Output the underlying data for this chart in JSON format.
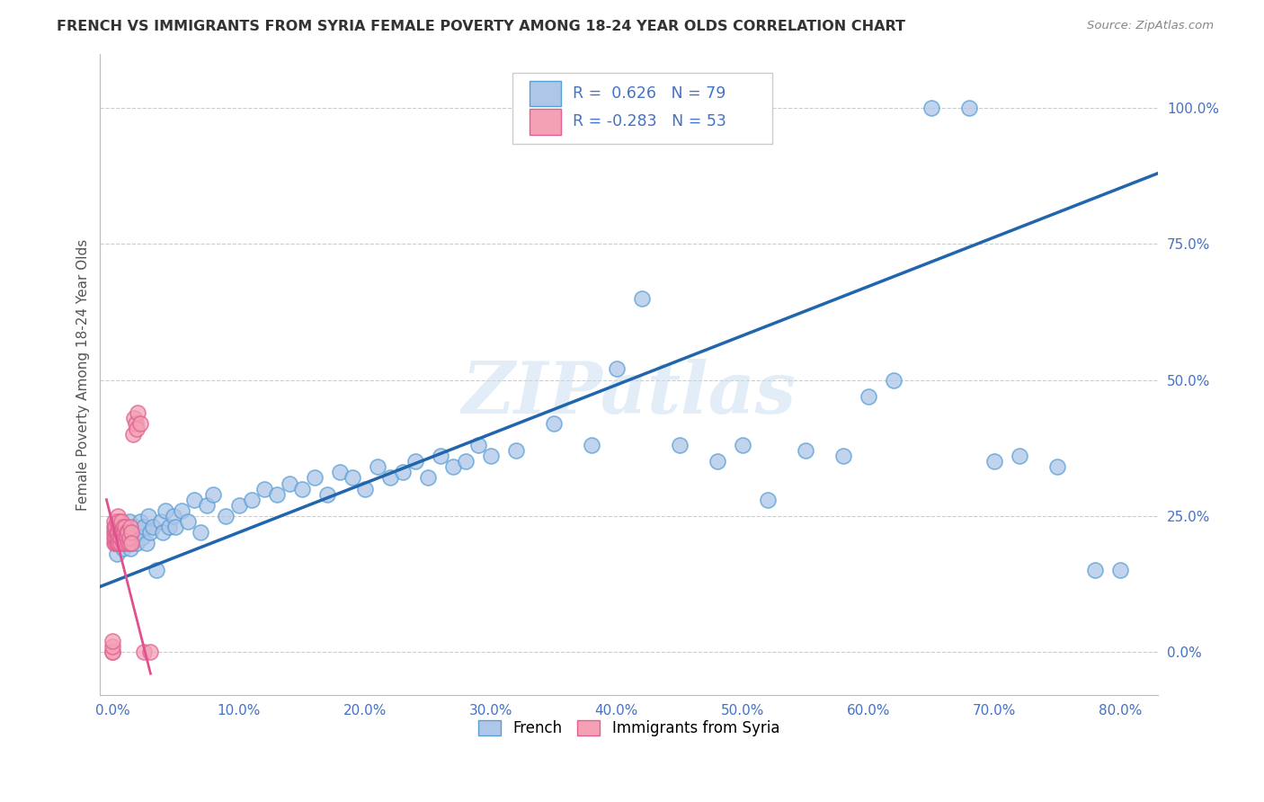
{
  "title": "FRENCH VS IMMIGRANTS FROM SYRIA FEMALE POVERTY AMONG 18-24 YEAR OLDS CORRELATION CHART",
  "source": "Source: ZipAtlas.com",
  "ylabel": "Female Poverty Among 18-24 Year Olds",
  "xlabel_ticks": [
    "0.0%",
    "10.0%",
    "20.0%",
    "30.0%",
    "40.0%",
    "50.0%",
    "60.0%",
    "70.0%",
    "80.0%"
  ],
  "xlabel_vals": [
    0,
    0.1,
    0.2,
    0.3,
    0.4,
    0.5,
    0.6,
    0.7,
    0.8
  ],
  "ylabel_ticks": [
    "0.0%",
    "25.0%",
    "50.0%",
    "75.0%",
    "100.0%"
  ],
  "ylabel_vals": [
    0,
    0.25,
    0.5,
    0.75,
    1.0
  ],
  "xlim": [
    -0.01,
    0.83
  ],
  "ylim": [
    -0.08,
    1.1
  ],
  "french_R": 0.626,
  "french_N": 79,
  "syria_R": -0.283,
  "syria_N": 53,
  "french_color": "#aec6e8",
  "syria_color": "#f4a0b5",
  "french_edge_color": "#5a9fd4",
  "syria_edge_color": "#e06090",
  "french_line_color": "#2166ac",
  "syria_line_color": "#e05090",
  "legend_french": "French",
  "legend_syria": "Immigrants from Syria",
  "watermark": "ZIPatlas",
  "background_color": "#ffffff",
  "grid_color": "#cccccc",
  "title_color": "#333333",
  "axis_label_color": "#555555",
  "tick_color": "#4472c4",
  "legend_r_color": "#4472c4",
  "french_x": [
    0.003,
    0.005,
    0.006,
    0.007,
    0.008,
    0.009,
    0.01,
    0.011,
    0.012,
    0.013,
    0.014,
    0.015,
    0.016,
    0.017,
    0.018,
    0.019,
    0.02,
    0.022,
    0.023,
    0.025,
    0.027,
    0.028,
    0.03,
    0.032,
    0.035,
    0.038,
    0.04,
    0.042,
    0.045,
    0.048,
    0.05,
    0.055,
    0.06,
    0.065,
    0.07,
    0.075,
    0.08,
    0.09,
    0.1,
    0.11,
    0.12,
    0.13,
    0.14,
    0.15,
    0.16,
    0.17,
    0.18,
    0.19,
    0.2,
    0.21,
    0.22,
    0.23,
    0.24,
    0.25,
    0.26,
    0.27,
    0.28,
    0.29,
    0.3,
    0.32,
    0.35,
    0.38,
    0.4,
    0.42,
    0.45,
    0.48,
    0.5,
    0.52,
    0.55,
    0.58,
    0.6,
    0.62,
    0.65,
    0.68,
    0.7,
    0.72,
    0.75,
    0.78,
    0.8
  ],
  "french_y": [
    0.18,
    0.22,
    0.2,
    0.21,
    0.19,
    0.23,
    0.2,
    0.22,
    0.21,
    0.24,
    0.19,
    0.2,
    0.22,
    0.21,
    0.23,
    0.2,
    0.22,
    0.24,
    0.21,
    0.23,
    0.2,
    0.25,
    0.22,
    0.23,
    0.15,
    0.24,
    0.22,
    0.26,
    0.23,
    0.25,
    0.23,
    0.26,
    0.24,
    0.28,
    0.22,
    0.27,
    0.29,
    0.25,
    0.27,
    0.28,
    0.3,
    0.29,
    0.31,
    0.3,
    0.32,
    0.29,
    0.33,
    0.32,
    0.3,
    0.34,
    0.32,
    0.33,
    0.35,
    0.32,
    0.36,
    0.34,
    0.35,
    0.38,
    0.36,
    0.37,
    0.42,
    0.38,
    0.52,
    0.65,
    0.38,
    0.35,
    0.38,
    0.28,
    0.37,
    0.36,
    0.47,
    0.5,
    1.0,
    1.0,
    0.35,
    0.36,
    0.34,
    0.15,
    0.15
  ],
  "syria_x": [
    0.0,
    0.0,
    0.0,
    0.0,
    0.001,
    0.001,
    0.001,
    0.001,
    0.001,
    0.002,
    0.002,
    0.002,
    0.002,
    0.003,
    0.003,
    0.003,
    0.003,
    0.004,
    0.004,
    0.004,
    0.005,
    0.005,
    0.005,
    0.005,
    0.006,
    0.006,
    0.006,
    0.007,
    0.007,
    0.008,
    0.008,
    0.009,
    0.009,
    0.01,
    0.01,
    0.01,
    0.011,
    0.011,
    0.012,
    0.012,
    0.013,
    0.013,
    0.014,
    0.015,
    0.015,
    0.016,
    0.017,
    0.018,
    0.019,
    0.02,
    0.022,
    0.025,
    0.03
  ],
  "syria_y": [
    0.0,
    0.0,
    0.01,
    0.02,
    0.2,
    0.22,
    0.21,
    0.23,
    0.24,
    0.2,
    0.22,
    0.21,
    0.23,
    0.2,
    0.21,
    0.22,
    0.24,
    0.2,
    0.22,
    0.25,
    0.21,
    0.2,
    0.23,
    0.24,
    0.22,
    0.2,
    0.21,
    0.22,
    0.24,
    0.2,
    0.23,
    0.21,
    0.22,
    0.21,
    0.23,
    0.2,
    0.22,
    0.21,
    0.2,
    0.22,
    0.2,
    0.21,
    0.23,
    0.22,
    0.2,
    0.4,
    0.43,
    0.42,
    0.41,
    0.44,
    0.42,
    0.0,
    0.0
  ],
  "blue_line_x0": -0.01,
  "blue_line_y0": 0.12,
  "blue_line_x1": 0.83,
  "blue_line_y1": 0.88,
  "pink_line_x0": -0.005,
  "pink_line_y0": 0.28,
  "pink_line_x1": 0.03,
  "pink_line_y1": -0.04
}
